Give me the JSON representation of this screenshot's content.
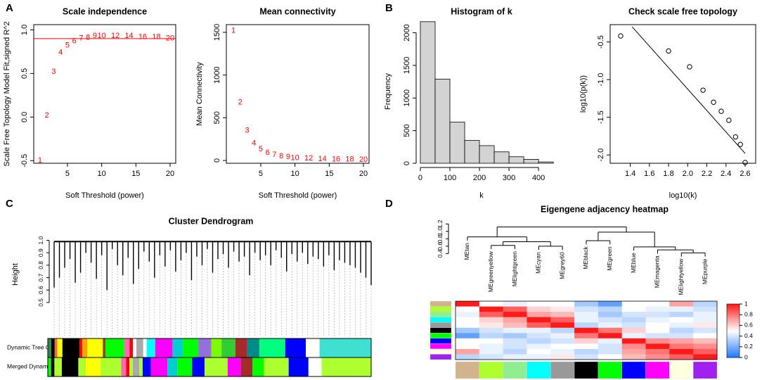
{
  "panel_labels": [
    "A",
    "B",
    "C",
    "D"
  ],
  "chart_data": [
    {
      "type": "scatter",
      "marker": "label",
      "title": "Scale independence",
      "xlabel": "Soft Threshold (power)",
      "ylabel": "Scale Free Topology Model Fit,signed R^2",
      "x": [
        1,
        2,
        3,
        4,
        5,
        6,
        7,
        8,
        9,
        10,
        12,
        14,
        16,
        18,
        20
      ],
      "values": [
        -0.5,
        0.02,
        0.52,
        0.74,
        0.82,
        0.87,
        0.9,
        0.91,
        0.93,
        0.93,
        0.93,
        0.93,
        0.92,
        0.92,
        0.9
      ],
      "color": "#ff0000",
      "hline": 0.9,
      "xlim": [
        0.08,
        20.82
      ],
      "ylim": [
        -0.53,
        1.06
      ],
      "xticks": [
        5,
        10,
        15,
        20
      ],
      "yticks": [
        -0.5,
        {
          "value": 0,
          "label": "0.0"
        },
        0.5,
        {
          "value": 1,
          "label": "1.0"
        }
      ]
    },
    {
      "type": "scatter",
      "marker": "label",
      "title": "Mean connectivity",
      "xlabel": "Soft Threshold (power)",
      "ylabel": "Mean Connectivity",
      "x": [
        1,
        2,
        3,
        4,
        5,
        6,
        7,
        8,
        9,
        10,
        12,
        14,
        16,
        18,
        20
      ],
      "values": [
        1520,
        680,
        350,
        200,
        130,
        90,
        65,
        50,
        40,
        30,
        22,
        16,
        12,
        10,
        8
      ],
      "color": "#ff0000",
      "xlim": [
        -0.03,
        20.82
      ],
      "ylim": [
        -33,
        1590
      ],
      "xticks": [
        5,
        10,
        15,
        20
      ],
      "yticks": [
        0,
        500,
        1000,
        1500
      ]
    },
    {
      "type": "histogram",
      "title": "Histogram of k",
      "xlabel": "k",
      "ylabel": "Frequency",
      "bins": [
        0,
        50,
        100,
        150,
        200,
        250,
        300,
        350,
        400,
        450
      ],
      "values": [
        2170,
        1290,
        630,
        350,
        270,
        175,
        100,
        60,
        20
      ],
      "color": "#d3d3d3",
      "xlim": [
        -19,
        433
      ],
      "ylim": [
        0,
        2200
      ],
      "xticks": [
        0,
        100,
        200,
        300,
        400
      ],
      "yticks": [
        0,
        500,
        1000,
        1500,
        2000
      ]
    },
    {
      "type": "scatter",
      "marker": "circle",
      "title": "Check scale free topology",
      "xlabel": "log10(k)",
      "ylabel": "log10(p(k))",
      "x": [
        1.3,
        1.8,
        2.02,
        2.16,
        2.27,
        2.35,
        2.43,
        2.5,
        2.55,
        2.6
      ],
      "values": [
        -0.42,
        -0.62,
        -0.83,
        -1.14,
        -1.3,
        -1.42,
        -1.54,
        -1.76,
        -1.86,
        -2.1
      ],
      "color": "#000000",
      "fit_line": {
        "x": [
          1.42,
          2.6
        ],
        "y": [
          -0.3,
          -1.98
        ]
      },
      "xlim": [
        1.19,
        2.71
      ],
      "ylim": [
        -2.11,
        -0.27
      ],
      "xticks": [
        1.4,
        1.6,
        1.8,
        {
          "value": 2,
          "label": "2.0"
        },
        2.2,
        2.4,
        2.6
      ],
      "yticks": [
        -0.5,
        {
          "value": -1,
          "label": "-1.0"
        },
        -1.5,
        {
          "value": -2,
          "label": "-2.0"
        }
      ]
    },
    {
      "type": "dendrogram",
      "title": "Cluster Dendrogram",
      "ylabel": "Height",
      "top": 0.99,
      "leaf_heights": [
        0.62,
        0.7,
        0.78,
        0.85,
        0.66,
        0.74,
        0.9,
        0.82,
        0.69,
        0.88,
        0.6,
        0.93,
        0.8,
        0.72,
        0.86,
        0.65,
        0.77,
        0.91,
        0.83,
        0.7,
        0.88,
        0.79,
        0.92,
        0.75,
        0.84,
        0.9,
        0.68,
        0.87,
        0.8,
        0.93,
        0.74,
        0.85,
        0.89,
        0.78,
        0.91,
        0.83,
        0.87,
        0.72,
        0.9,
        0.84,
        0.88,
        0.8,
        0.92,
        0.86,
        0.75,
        0.89,
        0.83,
        0.9,
        0.81,
        0.87,
        0.85,
        0.79,
        0.88,
        0.76,
        0.84,
        0.82,
        0.8,
        0.78,
        0.74,
        0.7,
        0.64
      ],
      "ylim": [
        0.42,
        1.02
      ],
      "yticks": [
        0.5,
        0.6,
        0.7,
        0.8,
        0.9,
        {
          "value": 1,
          "label": "1.0"
        }
      ],
      "colorbars": [
        {
          "name": "Dynamic Tree Cut",
          "colors": [
            "#2e8b57",
            "#000000",
            "#ff6347",
            "#ffff00",
            "#000000",
            "#ff0000",
            "#ffa500",
            "#ffff00",
            "#8b4513",
            "#00ff00",
            "#ff69b4",
            "#ff0000",
            "#ffffff",
            "#a9a9a9",
            "#ffffff",
            "#00ffff",
            "#ff00ff",
            "#00ced1",
            "#00ff00",
            "#9370db",
            "#7cfc00",
            "#32cd32",
            "#a52a2a",
            "#008b8b",
            "#00ff7f",
            "#0000ff",
            "#ffffff",
            "#40e0d0"
          ],
          "widths": [
            4,
            4,
            3,
            6,
            20,
            3,
            6,
            18,
            3,
            22,
            6,
            4,
            4,
            8,
            4,
            10,
            20,
            12,
            18,
            15,
            12,
            16,
            14,
            14,
            30,
            24,
            16,
            60
          ]
        },
        {
          "name": "Merged Dynamics",
          "colors": [
            "#00ff00",
            "#000000",
            "#adff2f",
            "#000000",
            "#adff2f",
            "#ffff00",
            "#adff2f",
            "#ff69b4",
            "#ff0000",
            "#adff2f",
            "#a9a9a9",
            "#adff2f",
            "#0000ff",
            "#ff00ff",
            "#00ced1",
            "#00ff00",
            "#0000ff",
            "#adff2f",
            "#ff00ff",
            "#a52a2a",
            "#00ff00",
            "#adff2f",
            "#0000ff",
            "#ffffff",
            "#adff2f"
          ],
          "widths": [
            4,
            4,
            9,
            20,
            9,
            18,
            25,
            6,
            4,
            4,
            8,
            4,
            10,
            20,
            12,
            18,
            15,
            28,
            16,
            14,
            14,
            30,
            24,
            16,
            60
          ]
        }
      ]
    },
    {
      "type": "heatmap",
      "title": "Eigengene adjacency heatmap",
      "labels": [
        "MEtan",
        "MEgreenyellow",
        "MElightgreen",
        "MEcyan",
        "MEgrey60",
        "MEblack",
        "MEgreen",
        "MEblue",
        "MEmagenta",
        "MElightyellow",
        "MEpurple"
      ],
      "colors": [
        "#d2b48c",
        "#adff2f",
        "#90ee90",
        "#00ffff",
        "#999999",
        "#000000",
        "#00ff00",
        "#0000ff",
        "#ff00ff",
        "#ffffe0",
        "#a020f0"
      ],
      "merge": [
        [
          -10,
          -11
        ],
        [
          -9,
          1
        ],
        [
          -2,
          -3
        ],
        [
          -4,
          -5
        ],
        [
          -8,
          2
        ],
        [
          3,
          4
        ],
        [
          -6,
          -7
        ],
        [
          -1,
          6
        ],
        [
          7,
          5
        ],
        [
          8,
          9
        ]
      ],
      "heights": [
        0.42,
        0.5,
        0.62,
        0.6,
        0.58,
        0.72,
        0.75,
        0.85,
        0.98,
        1.12
      ],
      "ylim": [
        0.35,
        1.3
      ],
      "yticks": [
        0.4,
        0.6,
        0.8,
        {
          "value": 1,
          "label": "1.0"
        },
        1.2
      ],
      "matrix": [
        [
          1,
          0.5,
          0.45,
          0.5,
          0.5,
          0.3,
          0.15,
          0.5,
          0.5,
          0.7,
          0.35
        ],
        [
          0.5,
          1,
          0.85,
          0.6,
          0.55,
          0.4,
          0.35,
          0.5,
          0.45,
          0.45,
          0.4
        ],
        [
          0.45,
          0.85,
          1,
          0.7,
          0.65,
          0.45,
          0.3,
          0.4,
          0.4,
          0.35,
          0.45
        ],
        [
          0.5,
          0.6,
          0.7,
          1,
          0.85,
          0.45,
          0.4,
          0.35,
          0.45,
          0.5,
          0.45
        ],
        [
          0.5,
          0.55,
          0.65,
          0.85,
          1,
          0.35,
          0.45,
          0.4,
          0.5,
          0.45,
          0.55
        ],
        [
          0.3,
          0.4,
          0.45,
          0.45,
          0.35,
          1,
          0.8,
          0.6,
          0.5,
          0.35,
          0.4
        ],
        [
          0.15,
          0.35,
          0.3,
          0.4,
          0.45,
          0.8,
          1,
          0.45,
          0.4,
          0.4,
          0.5
        ],
        [
          0.5,
          0.5,
          0.4,
          0.35,
          0.4,
          0.6,
          0.45,
          1,
          0.75,
          0.7,
          0.65
        ],
        [
          0.5,
          0.45,
          0.4,
          0.45,
          0.5,
          0.5,
          0.4,
          0.75,
          1,
          0.8,
          0.75
        ],
        [
          0.7,
          0.45,
          0.35,
          0.5,
          0.45,
          0.35,
          0.4,
          0.7,
          0.8,
          1,
          0.85
        ],
        [
          0.35,
          0.4,
          0.45,
          0.45,
          0.55,
          0.4,
          0.5,
          0.65,
          0.75,
          0.85,
          1
        ]
      ],
      "colormap": [
        "#1f78ff",
        "#ffffff",
        "#ff1a1a"
      ],
      "legend_ticks": [
        0,
        0.2,
        0.4,
        0.6,
        0.8,
        1
      ]
    }
  ]
}
